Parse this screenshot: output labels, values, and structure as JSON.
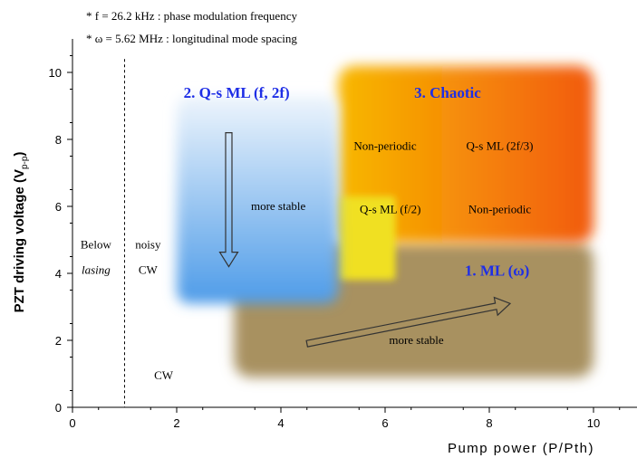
{
  "notes": [
    "* f = 26.2 kHz : phase modulation  frequency",
    "* ω = 5.62 MHz : longitudinal  mode spacing"
  ],
  "chart_data": {
    "type": "region-map",
    "xlabel": "Pump power (P/Pth)",
    "ylabel_main": "PZT driving voltage (V",
    "ylabel_sub": "p-p",
    "ylabel_end": ")",
    "xlim": [
      0,
      11
    ],
    "ylim": [
      0,
      11
    ],
    "xticks": [
      0,
      2,
      4,
      6,
      8,
      10
    ],
    "yticks": [
      0,
      2,
      4,
      6,
      8,
      10
    ],
    "threshold_x": 1,
    "regions": [
      {
        "id": "ml",
        "title": "1. ML (ω)",
        "x": [
          3.1,
          10
        ],
        "y": [
          0.9,
          4.9
        ],
        "color": "#a89160"
      },
      {
        "id": "qsml",
        "title": "2. Q-s ML (f, 2f)",
        "x": [
          2.0,
          5.1
        ],
        "y": [
          3.1,
          9.3
        ],
        "color_top": "#eef5fc",
        "color_bottom": "#4d9be8"
      },
      {
        "id": "chaotic",
        "title": "3. Chaotic",
        "x": [
          5.1,
          10
        ],
        "y": [
          4.9,
          10.2
        ],
        "color_left": "#f8b800",
        "color_right": "#f25a10"
      },
      {
        "id": "yellow",
        "x": [
          5.1,
          6.2
        ],
        "y": [
          3.8,
          6.3
        ],
        "color": "#f0e020"
      }
    ],
    "region_titles": [
      {
        "text": "2. Q-s ML (f, 2f)",
        "x": 3.15,
        "y": 9.4,
        "color": "#1e2ee6"
      },
      {
        "text": "3. Chaotic",
        "x": 7.2,
        "y": 9.4,
        "color": "#1e2ee6"
      },
      {
        "text": "1. ML (ω)",
        "x": 8.15,
        "y": 4.1,
        "color": "#1e2ee6"
      }
    ],
    "annotations": [
      {
        "text": "Non-periodic",
        "x": 6.0,
        "y": 7.8
      },
      {
        "text": "Q-s ML (2f/3)",
        "x": 8.2,
        "y": 7.8
      },
      {
        "text": "Q-s ML (f/2)",
        "x": 6.1,
        "y": 5.9
      },
      {
        "text": "Non-periodic",
        "x": 8.2,
        "y": 5.9
      },
      {
        "text": "more stable",
        "x": 3.95,
        "y": 6.0
      },
      {
        "text": "more stable",
        "x": 6.6,
        "y": 2.0
      },
      {
        "text": "Below",
        "x": 0.45,
        "y": 4.85
      },
      {
        "text": "noisy",
        "x": 1.45,
        "y": 4.85
      },
      {
        "text": "lasing",
        "x": 0.45,
        "y": 4.1,
        "italic": true
      },
      {
        "text": "CW",
        "x": 1.45,
        "y": 4.1
      },
      {
        "text": "CW",
        "x": 1.75,
        "y": 0.95
      }
    ],
    "arrows": [
      {
        "id": "down",
        "from": [
          3.0,
          8.2
        ],
        "to": [
          3.0,
          4.2
        ]
      },
      {
        "id": "diagonal",
        "from": [
          4.5,
          1.9
        ],
        "to": [
          8.4,
          3.1
        ]
      }
    ]
  }
}
